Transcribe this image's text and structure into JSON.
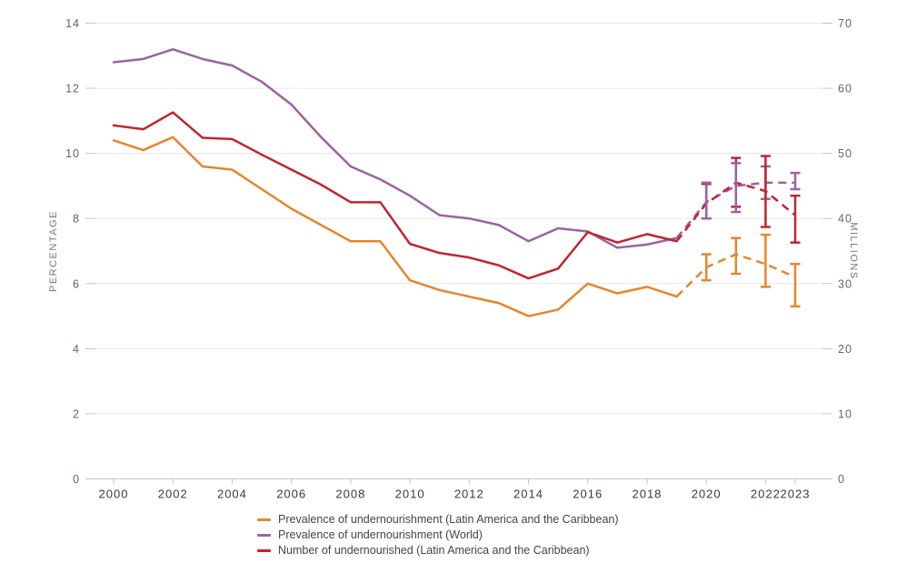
{
  "page": {
    "background": "#ffffff"
  },
  "colors": {
    "grid_line": "#e7e7e7",
    "axis_line": "#c6c6c6",
    "tick_mark": "#c0c4c8",
    "y_tick_text": "#5d6771",
    "x_tick_text": "#333b44",
    "axis_title_text": "#71797f",
    "legend_text": "#444444"
  },
  "chart_data": {
    "type": "line",
    "title": "",
    "grid": "horizontal",
    "legend_position": "bottom",
    "x": [
      2000,
      2001,
      2002,
      2003,
      2004,
      2005,
      2006,
      2007,
      2008,
      2009,
      2010,
      2011,
      2012,
      2013,
      2014,
      2015,
      2016,
      2017,
      2018,
      2019,
      2020,
      2021,
      2022,
      2023
    ],
    "x_tick_years": [
      2000,
      2002,
      2004,
      2006,
      2008,
      2010,
      2012,
      2014,
      2016,
      2018,
      2020,
      2022,
      2023
    ],
    "left_axis": {
      "label": "PERCENTAGE",
      "min": 0,
      "max": 14,
      "ticks": [
        0,
        2,
        4,
        6,
        8,
        10,
        12,
        14
      ]
    },
    "right_axis": {
      "label": "MILLIONS",
      "min": 0,
      "max": 70,
      "ticks": [
        0,
        10,
        20,
        30,
        40,
        50,
        60,
        70
      ]
    },
    "dashed_from_year": 2019,
    "series": [
      {
        "name": "pou-lac",
        "label": "Prevalence of undernourishment (Latin America and the Caribbean)",
        "color": "#E6862B",
        "axis": "left",
        "values": [
          10.4,
          10.1,
          10.5,
          9.6,
          9.5,
          8.9,
          8.3,
          7.8,
          7.3,
          7.3,
          6.1,
          5.8,
          5.6,
          5.4,
          5.0,
          5.2,
          6.0,
          5.7,
          5.9,
          5.6,
          6.5,
          6.9,
          6.6,
          6.2
        ],
        "error_bars": {
          "2020": [
            6.1,
            6.9
          ],
          "2021": [
            6.3,
            7.4
          ],
          "2022": [
            5.9,
            7.5
          ],
          "2023": [
            5.3,
            6.6
          ]
        }
      },
      {
        "name": "pou-world",
        "label": "Prevalence of undernourishment (World)",
        "color": "#9A63A1",
        "axis": "left",
        "values": [
          12.8,
          12.9,
          13.2,
          12.9,
          12.7,
          12.2,
          11.5,
          10.5,
          9.6,
          9.2,
          8.7,
          8.1,
          8.0,
          7.8,
          7.3,
          7.7,
          7.6,
          7.1,
          7.2,
          7.4,
          8.5,
          9.0,
          9.1,
          9.1
        ],
        "error_bars": {
          "2020": [
            8.0,
            9.1
          ],
          "2021": [
            8.2,
            9.7
          ],
          "2022": [
            8.6,
            9.6
          ],
          "2023": [
            8.9,
            9.4
          ]
        }
      },
      {
        "name": "nou-lac",
        "label": "Number of undernourished (Latin America and the Caribbean)",
        "color": "#C22430",
        "axis": "right",
        "values": [
          54.3,
          53.7,
          56.3,
          52.4,
          52.2,
          49.8,
          47.5,
          45.2,
          42.5,
          42.5,
          36.1,
          34.7,
          34.0,
          32.8,
          30.8,
          32.3,
          37.9,
          36.3,
          37.6,
          36.5,
          42.3,
          45.5,
          44.2,
          40.5
        ],
        "error_bars": {
          "2020": [
            40.0,
            45.3
          ],
          "2021": [
            41.8,
            49.3
          ],
          "2022": [
            38.7,
            49.6
          ],
          "2023": [
            36.3,
            43.5
          ]
        }
      }
    ],
    "error_bar_draw_order": [
      {
        "series": "nou-lac",
        "year": 2020
      },
      {
        "series": "nou-lac",
        "year": 2021
      },
      {
        "series": "pou-world",
        "year": 2020
      },
      {
        "series": "pou-world",
        "year": 2021
      },
      {
        "series": "pou-world",
        "year": 2022
      },
      {
        "series": "nou-lac",
        "year": 2022
      },
      {
        "series": "pou-world",
        "year": 2023
      },
      {
        "series": "nou-lac",
        "year": 2023
      },
      {
        "series": "pou-lac",
        "year": 2020
      },
      {
        "series": "pou-lac",
        "year": 2021
      },
      {
        "series": "pou-lac",
        "year": 2022
      },
      {
        "series": "pou-lac",
        "year": 2023
      }
    ]
  }
}
